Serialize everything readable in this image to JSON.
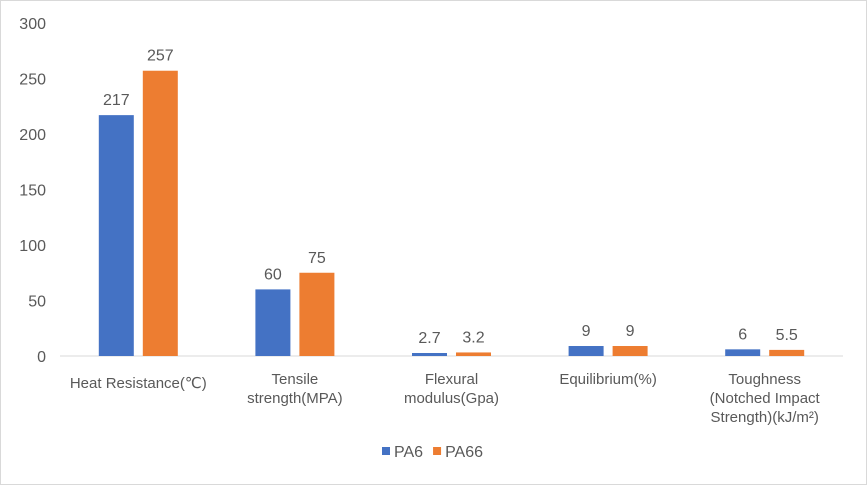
{
  "chart_data": {
    "type": "bar",
    "title": "",
    "xlabel": "",
    "ylabel": "",
    "categories": [
      "Heat Resistance(℃)",
      "Tensile\nstrength(MPA)",
      "Flexural\nmodulus(Gpa)",
      "Equilibrium(%)",
      "Toughness\n(Notched Impact\nStrength)(kJ/m²)"
    ],
    "series": [
      {
        "name": "PA6",
        "values": [
          217,
          60,
          2.7,
          9,
          6
        ],
        "labels": [
          "217",
          "60",
          "2.7",
          "9",
          "6"
        ],
        "color": "#4472C4"
      },
      {
        "name": "PA66",
        "values": [
          257,
          75,
          3.2,
          9,
          5.5
        ],
        "labels": [
          "257",
          "75",
          "3.2",
          "9",
          "5.5"
        ],
        "color": "#ED7D31"
      }
    ],
    "ylim": [
      0,
      300
    ],
    "yticks": [
      "0",
      "50",
      "100",
      "150",
      "200",
      "250",
      "300"
    ],
    "grid": false,
    "legend": "bottom",
    "data_labels": true
  }
}
